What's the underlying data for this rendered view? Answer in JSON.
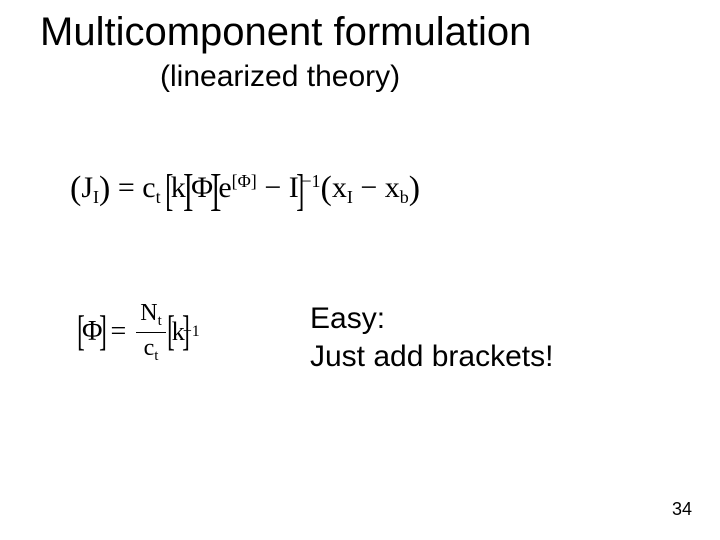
{
  "title": "Multicomponent formulation",
  "subtitle": "(linearized theory)",
  "eq1": {
    "lparen": "(",
    "J": "J",
    "Jsub": "I",
    "rparen": ")",
    "eq": "=",
    "c": "c",
    "csub": "t",
    "k": "k",
    "phi": "Φ",
    "e": "e",
    "esup": "[Φ]",
    "minus": "−",
    "I": "I",
    "invsup": "−1",
    "x1": "x",
    "x1sub": "I",
    "x2": "x",
    "x2sub": "b"
  },
  "eq2": {
    "phi": "Φ",
    "eq": "=",
    "N": "N",
    "Nsub": "t",
    "c": "c",
    "csub": "t",
    "k": "k",
    "inv": "−1"
  },
  "callout_line1": "Easy:",
  "callout_line2": "Just add brackets!",
  "pagenum": "34",
  "colors": {
    "text": "#000000",
    "background": "#ffffff"
  }
}
